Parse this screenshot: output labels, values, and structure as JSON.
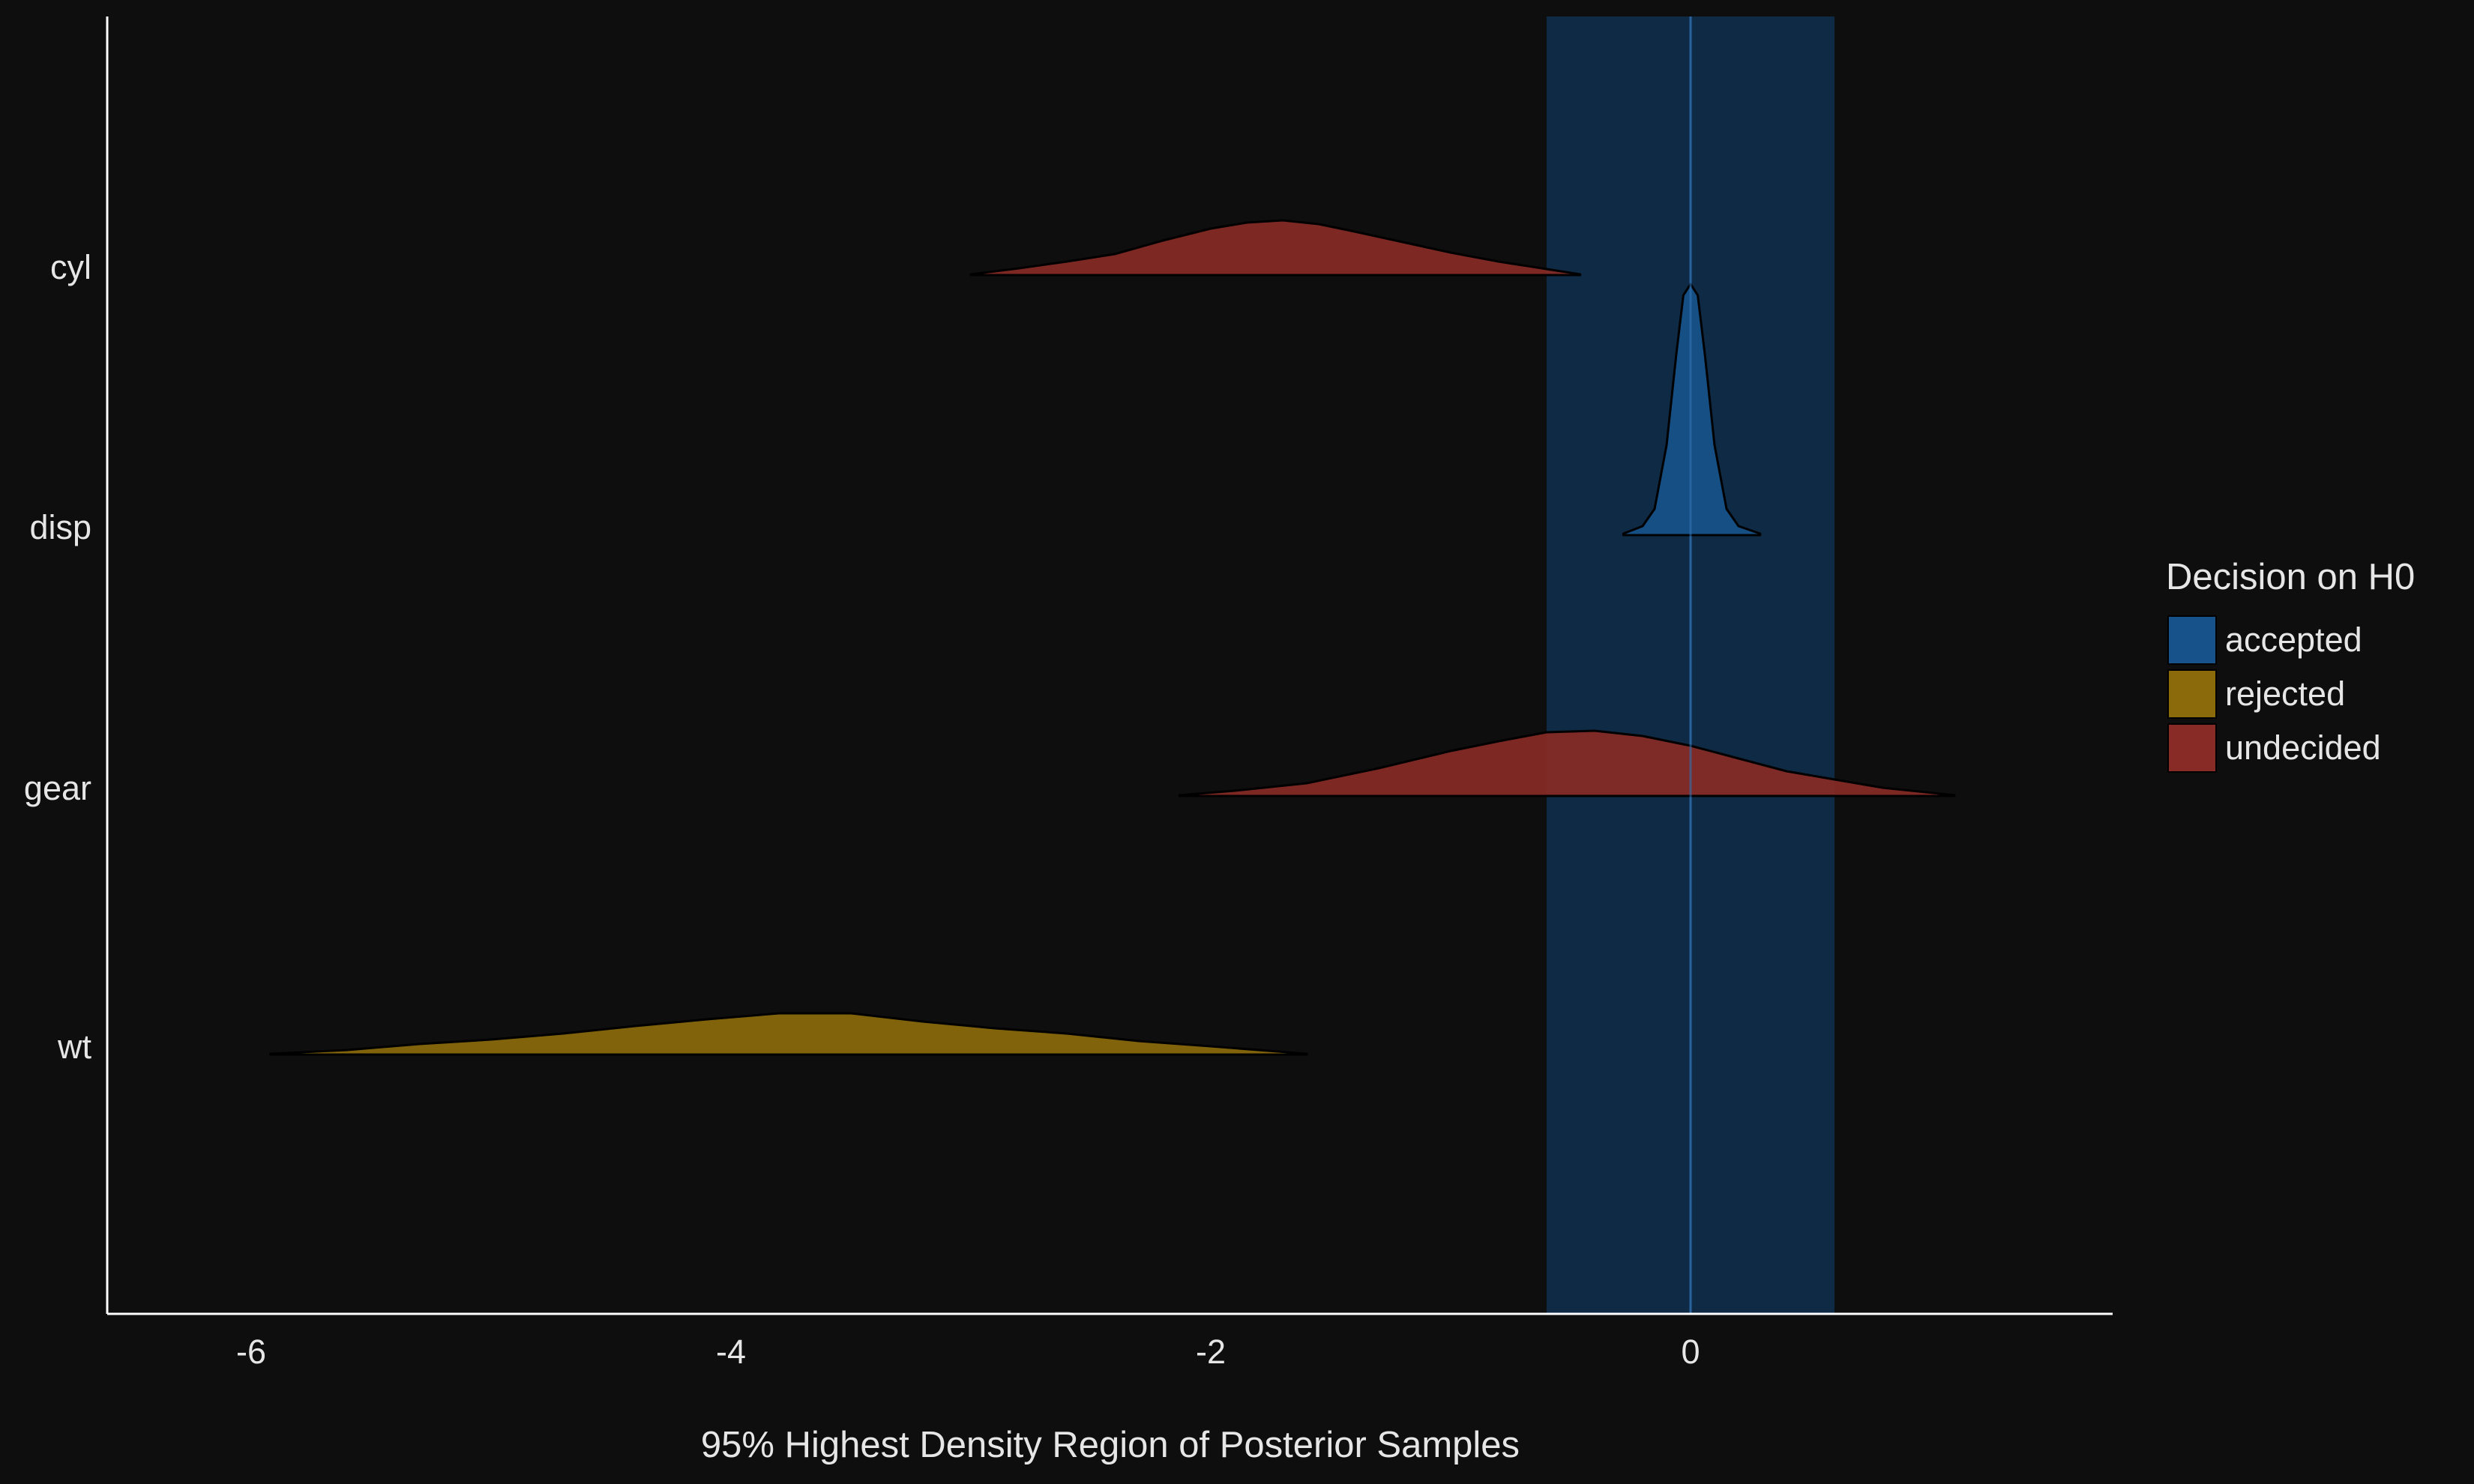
{
  "chart_data": {
    "type": "area",
    "subtype": "ridgeline-density",
    "xlabel": "95% Highest Density Region of Posterior Samples",
    "ylabel": "",
    "xlim": [
      -6.6,
      1.75
    ],
    "xticks": [
      -6,
      -4,
      -2,
      0
    ],
    "categories": [
      "cyl",
      "disp",
      "gear",
      "wt"
    ],
    "rope": {
      "low": -0.6,
      "high": 0.6,
      "color": "#0f2a44"
    },
    "reference_line": 0,
    "grid": false,
    "legend": {
      "title": "Decision on H0",
      "position": "right",
      "items": [
        {
          "label": "accepted",
          "color": "#17528a"
        },
        {
          "label": "rejected",
          "color": "#8a6a0a"
        },
        {
          "label": "undecided",
          "color": "#882a25"
        }
      ]
    },
    "series": [
      {
        "category": "cyl",
        "decision": "undecided",
        "x": [
          -3.0,
          -2.8,
          -2.6,
          -2.4,
          -2.2,
          -2.0,
          -1.85,
          -1.7,
          -1.55,
          -1.4,
          -1.2,
          -1.0,
          -0.8,
          -0.6,
          -0.46
        ],
        "density": [
          0.01,
          0.09,
          0.18,
          0.28,
          0.46,
          0.62,
          0.7,
          0.73,
          0.68,
          0.58,
          0.44,
          0.3,
          0.18,
          0.08,
          0.01
        ]
      },
      {
        "category": "disp",
        "decision": "accepted",
        "x": [
          -0.28,
          -0.2,
          -0.15,
          -0.1,
          -0.06,
          -0.03,
          0.0,
          0.03,
          0.06,
          0.1,
          0.15,
          0.2,
          0.29
        ],
        "density": [
          0.02,
          0.12,
          0.35,
          1.2,
          2.4,
          3.2,
          3.35,
          3.2,
          2.4,
          1.2,
          0.35,
          0.12,
          0.02
        ]
      },
      {
        "category": "gear",
        "decision": "undecided",
        "x": [
          -2.13,
          -1.9,
          -1.6,
          -1.3,
          -1.0,
          -0.8,
          -0.6,
          -0.4,
          -0.2,
          0.0,
          0.2,
          0.4,
          0.6,
          0.8,
          1.1
        ],
        "density": [
          0.01,
          0.07,
          0.17,
          0.37,
          0.6,
          0.73,
          0.85,
          0.87,
          0.8,
          0.67,
          0.5,
          0.33,
          0.22,
          0.11,
          0.01
        ]
      },
      {
        "category": "wt",
        "decision": "rejected",
        "x": [
          -5.92,
          -5.6,
          -5.3,
          -5.0,
          -4.7,
          -4.4,
          -4.1,
          -3.8,
          -3.5,
          -3.2,
          -2.9,
          -2.6,
          -2.3,
          -2.0,
          -1.6
        ],
        "density": [
          0.01,
          0.06,
          0.14,
          0.2,
          0.28,
          0.38,
          0.47,
          0.55,
          0.55,
          0.44,
          0.35,
          0.28,
          0.18,
          0.11,
          0.01
        ]
      }
    ]
  }
}
